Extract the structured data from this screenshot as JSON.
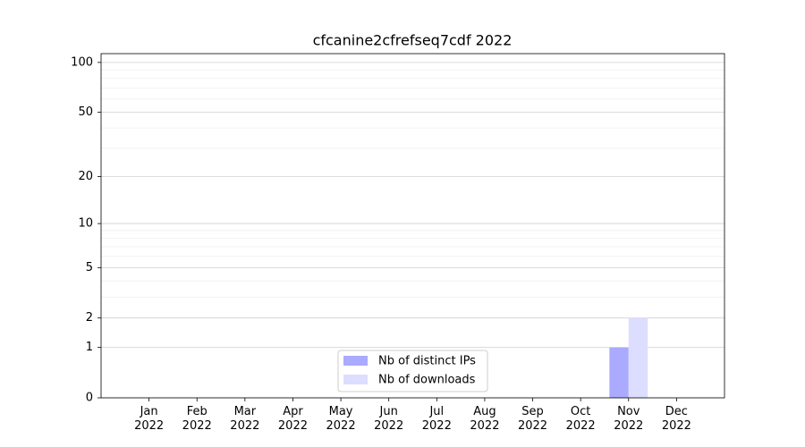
{
  "chart_data": {
    "type": "bar",
    "title": "cfcanine2cfrefseq7cdf 2022",
    "categories": [
      "Jan\n2022",
      "Feb\n2022",
      "Mar\n2022",
      "Apr\n2022",
      "May\n2022",
      "Jun\n2022",
      "Jul\n2022",
      "Aug\n2022",
      "Sep\n2022",
      "Oct\n2022",
      "Nov\n2022",
      "Dec\n2022"
    ],
    "series": [
      {
        "name": "Nb of distinct IPs",
        "color": "#aaaaff",
        "values": [
          0,
          0,
          0,
          0,
          0,
          0,
          0,
          0,
          0,
          0,
          1,
          0
        ]
      },
      {
        "name": "Nb of downloads",
        "color": "#ddddff",
        "values": [
          0,
          0,
          0,
          0,
          0,
          0,
          0,
          0,
          0,
          0,
          2,
          0
        ]
      }
    ],
    "yscale": "log1p",
    "ylim": [
      0,
      113
    ],
    "yticks": [
      0,
      1,
      2,
      5,
      10,
      20,
      50,
      100
    ],
    "minor_yticks": [
      3,
      4,
      6,
      7,
      8,
      9,
      30,
      40,
      60,
      70,
      80,
      90
    ],
    "grid": true,
    "legend": "lower center"
  }
}
